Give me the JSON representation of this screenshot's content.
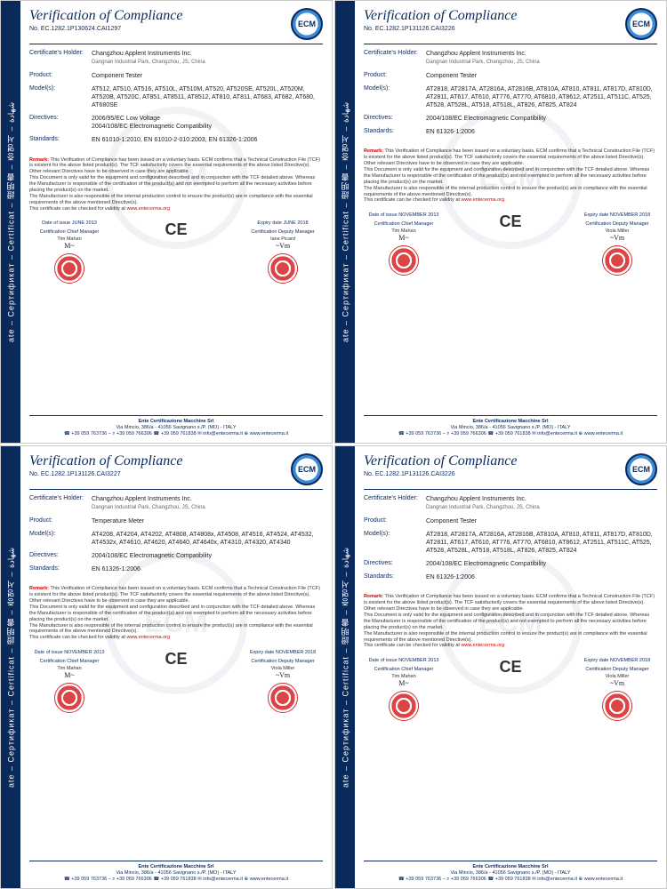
{
  "sidebar_text": "ate – Сертификат – Certificat – 證明書 – 증명서 – شهادة",
  "title": "Verification of Compliance",
  "logo_text": "ECM",
  "footer": {
    "org": "Ente Certificazione Macchine Srl",
    "addr": "Via Mincio, 386/a - 41056 Savignano s./P. (MO) - ITALY",
    "contact": "☎ +39 059 763736 – ⌕ +39 059 766306 ☎ +39 059 761838 ✉ info@entecerma.it ⊕ www.entecerma.it"
  },
  "remark_label": "Remark:",
  "remark_body": "This Verification of Compliance has been issued on a voluntary basis. ECM confirms that a Technical Construction File (TCF) is existent for the above listed product(s). The TCF satisfactorily covers the essential requirements of the above listed Directive(s).\nOther relevant Directives have to be observed in case they are applicable.\nThis Document is only valid for the equipment and configuration described and in conjunction with the TCF detailed above. Whereas the Manufacturer is responsible of the certification of the product(s) and not exempted to perform all the necessary activities before placing the product(s) on the market.\nThe Manufacturer is also responsible of the internal production control to ensure the product(s) are in compliance with the essential requirements of the above mentioned Directive(s).\nThis certificate can be checked for validity at",
  "remark_link": "www.entecerma.org",
  "sig": {
    "left_title": "Certification Chief Manager",
    "left_name": "Tim Mahan",
    "right_title": "Certification Deputy Manager",
    "ce": "CE"
  },
  "labels": {
    "holder": "Certificate's Holder:",
    "product": "Product:",
    "models": "Model(s):",
    "directives": "Directives:",
    "standards": "Standards:"
  },
  "holder": {
    "name": "Changzhou Applent Instruments Inc.",
    "addr": "Dangnan Industrial Park, Changzhou, JS, China"
  },
  "certs": [
    {
      "no": "No. EC.1282.1P130624.CAI1297",
      "product": "Component Tester",
      "models": "AT512, AT510, AT516, AT510L, AT510M, AT520, AT520SE, AT520L, AT520M, AT520B, AT520C, AT851, AT8511, AT8512, AT810, AT811, AT683, AT682, AT680, AT680SE",
      "directives": "2006/95/EC Low Voltage\n2004/108/EC Electromagnetic Compatibility",
      "standards": "EN 61010-1:2010, EN 61010-2-010:2003, EN 61326-1:2006",
      "issue": "Date of issue JUNE 2013",
      "expiry": "Expiry date JUNE 2018",
      "right_name": "Iane Picard"
    },
    {
      "no": "No. EC.1282.1P131126.CAI3226",
      "product": "Component Tester",
      "models": "AT2818, AT2817A, AT2816A, AT2816B, AT810A, AT810, AT811, AT817D, AT810D, AT2811, AT617, AT610, AT776, AT770, AT6810, AT8612, AT2511, AT511C, AT525, AT528, AT528L, AT518, AT518L, AT826, AT825, AT824",
      "directives": "2004/108/EC Electromagnetic Compatibility",
      "standards": "EN 61326-1:2006",
      "issue": "Date of issue NOVEMBER 2013",
      "expiry": "Expiry date NOVEMBER 2018",
      "right_name": "Viola Miller"
    },
    {
      "no": "No. EC.1282.1P131126.CAI3227",
      "product": "Temperature Meter",
      "models": "AT4208, AT4204, AT4202, AT4808, AT4808x, AT4508, AT4516, AT4524, AT4532, AT4532x, AT4610, AT4620, AT4640, AT4640x, AT4310, AT4320, AT4340",
      "directives": "2004/108/EC Electromagnetic Compatibility",
      "standards": "EN 61326-1:2006",
      "issue": "Date of issue NOVEMBER 2013",
      "expiry": "Expiry date NOVEMBER 2018",
      "right_name": "Viola Miller"
    },
    {
      "no": "No. EC.1282.1P131126.CAI3226",
      "product": "Component Tester",
      "models": "AT2818, AT2817A, AT2816A, AT2816B, AT810A, AT810, AT811, AT817D, AT810D, AT2811, AT617, AT610, AT776, AT770, AT6810, AT8612, AT2511, AT511C, AT525, AT528, AT528L, AT518, AT518L, AT826, AT825, AT824",
      "directives": "2004/108/EC Electromagnetic Compatibility",
      "standards": "EN 61326-1:2006",
      "issue": "Date of issue NOVEMBER 2013",
      "expiry": "Expiry date NOVEMBER 2018",
      "right_name": "Viola Miller"
    }
  ]
}
